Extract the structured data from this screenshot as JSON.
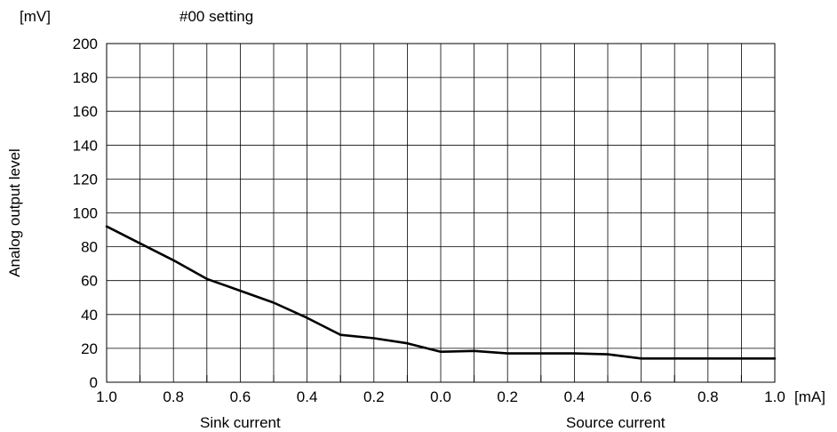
{
  "chart_data": {
    "type": "line",
    "title": "#00 setting",
    "ylabel": "Analog output level",
    "y_unit": "[mV]",
    "x_unit": "[mA]",
    "x_region_labels": [
      "Sink current",
      "Source current"
    ],
    "ylim": [
      0,
      200
    ],
    "y_ticks": [
      0,
      20,
      40,
      60,
      80,
      100,
      120,
      140,
      160,
      180,
      200
    ],
    "xlim": [
      -1.0,
      1.0
    ],
    "x_ticks": [
      -1.0,
      -0.8,
      -0.6,
      -0.4,
      -0.2,
      0.0,
      0.2,
      0.4,
      0.6,
      0.8,
      1.0
    ],
    "x_tick_labels": [
      "1.0",
      "0.8",
      "0.6",
      "0.4",
      "0.2",
      "0.0",
      "0.2",
      "0.4",
      "0.6",
      "0.8",
      "1.0"
    ],
    "grid": true,
    "series": [
      {
        "x": [
          -1.0,
          -0.9,
          -0.8,
          -0.7,
          -0.6,
          -0.5,
          -0.4,
          -0.3,
          -0.2,
          -0.1,
          0.0,
          0.1,
          0.2,
          0.3,
          0.4,
          0.5,
          0.6,
          0.7,
          0.8,
          0.9,
          1.0
        ],
        "y": [
          92,
          82,
          72,
          61,
          54,
          47,
          38,
          28,
          26,
          23,
          18,
          18.5,
          17,
          17,
          17,
          16.5,
          14,
          14,
          14,
          14,
          14
        ]
      }
    ]
  }
}
